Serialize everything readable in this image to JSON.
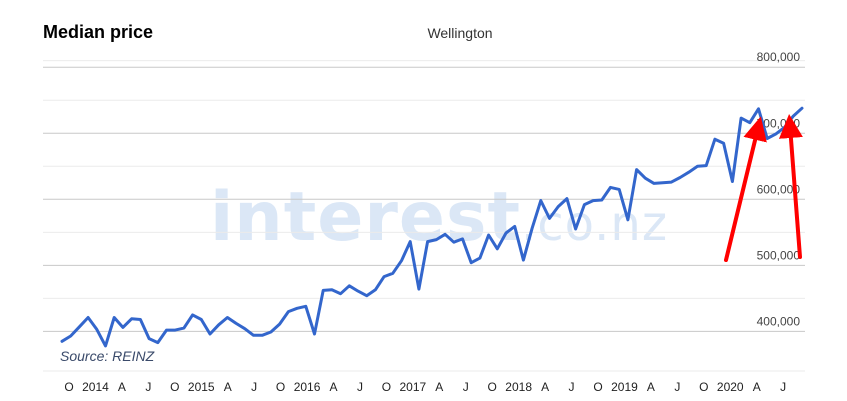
{
  "chart_data": {
    "type": "line",
    "title": "Median price",
    "subtitle": "Wellington",
    "source": "Source: REINZ",
    "watermark": "interest.co.nz",
    "watermark_main": "interest",
    "watermark_suffix": ".co.nz",
    "ylim": [
      340000,
      820000
    ],
    "yticks": [
      400000,
      500000,
      600000,
      700000,
      800000
    ],
    "ytick_labels": [
      "400,000",
      "500,000",
      "600,000",
      "700,000",
      "800,000"
    ],
    "xlabels": [
      "O",
      "2014",
      "A",
      "J",
      "O",
      "2015",
      "A",
      "J",
      "O",
      "2016",
      "A",
      "J",
      "O",
      "2017",
      "A",
      "J",
      "O",
      "2018",
      "A",
      "J",
      "O",
      "2019",
      "A",
      "J",
      "O",
      "2020",
      "A",
      "J"
    ],
    "grid": true,
    "line_color": "#3366cc",
    "annotation_color": "#ff0000",
    "values": [
      385000,
      393000,
      407000,
      421000,
      403000,
      378000,
      421000,
      406000,
      419000,
      418000,
      389000,
      383000,
      402000,
      402000,
      405000,
      425000,
      418000,
      396000,
      410000,
      421000,
      412000,
      404000,
      394000,
      394000,
      399000,
      411000,
      430000,
      435000,
      438000,
      396000,
      462000,
      463000,
      457000,
      469000,
      461000,
      454000,
      463000,
      483000,
      488000,
      507000,
      536000,
      464000,
      536000,
      539000,
      547000,
      535000,
      540000,
      504000,
      511000,
      546000,
      525000,
      549000,
      559000,
      508000,
      556000,
      598000,
      571000,
      589000,
      601000,
      555000,
      592000,
      598000,
      599000,
      618000,
      615000,
      569000,
      645000,
      632000,
      624000,
      625000,
      626000,
      633000,
      641000,
      650000,
      651000,
      691000,
      685000,
      627000,
      723000,
      716000,
      737000,
      692000,
      699000,
      709000,
      726000,
      738000
    ]
  }
}
